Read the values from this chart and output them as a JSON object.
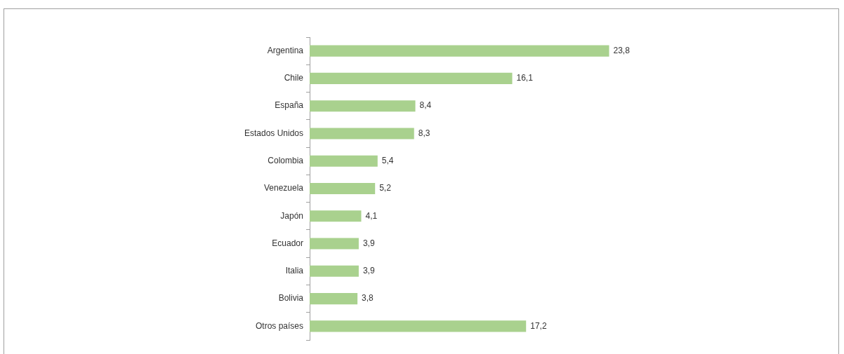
{
  "chart_data": {
    "type": "bar",
    "orientation": "horizontal",
    "categories": [
      "Argentina",
      "Chile",
      "España",
      "Estados Unidos",
      "Colombia",
      "Venezuela",
      "Japón",
      "Ecuador",
      "Italia",
      "Bolivia",
      "Otros países"
    ],
    "values": [
      23.8,
      16.1,
      8.4,
      8.3,
      5.4,
      5.2,
      4.1,
      3.9,
      3.9,
      3.8,
      17.2
    ],
    "value_labels": [
      "23,8",
      "16,1",
      "8,4",
      "8,3",
      "5,4",
      "5,2",
      "4,1",
      "3,9",
      "3,9",
      "3,8",
      "17,2"
    ],
    "color": "#a9d18e"
  }
}
